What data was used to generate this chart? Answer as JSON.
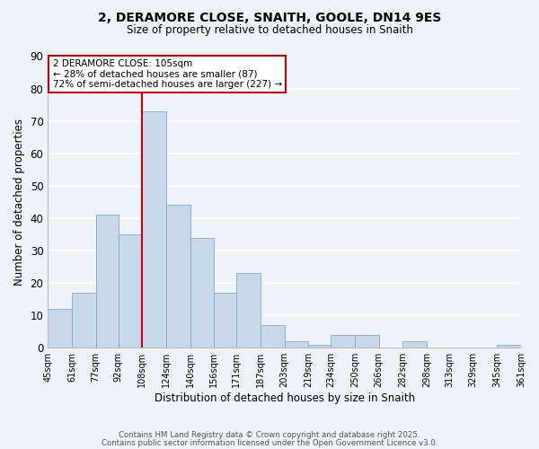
{
  "title": "2, DERAMORE CLOSE, SNAITH, GOOLE, DN14 9ES",
  "subtitle": "Size of property relative to detached houses in Snaith",
  "xlabel": "Distribution of detached houses by size in Snaith",
  "ylabel": "Number of detached properties",
  "bar_color": "#c8d8eb",
  "bar_edgecolor": "#7faac8",
  "background_color": "#eef2fa",
  "grid_color": "#ffffff",
  "vline_color": "#cc0000",
  "annotation_text": "2 DERAMORE CLOSE: 105sqm\n← 28% of detached houses are smaller (87)\n72% of semi-detached houses are larger (227) →",
  "annotation_box_edgecolor": "#cc0000",
  "bin_edges": [
    45,
    61,
    77,
    92,
    108,
    124,
    140,
    156,
    171,
    187,
    203,
    219,
    234,
    250,
    266,
    282,
    298,
    313,
    329,
    345,
    361
  ],
  "bin_labels": [
    "45sqm",
    "61sqm",
    "77sqm",
    "92sqm",
    "108sqm",
    "124sqm",
    "140sqm",
    "156sqm",
    "171sqm",
    "187sqm",
    "203sqm",
    "219sqm",
    "234sqm",
    "250sqm",
    "266sqm",
    "282sqm",
    "298sqm",
    "313sqm",
    "329sqm",
    "345sqm",
    "361sqm"
  ],
  "counts": [
    12,
    17,
    41,
    35,
    73,
    44,
    34,
    17,
    23,
    7,
    2,
    1,
    4,
    4,
    0,
    2,
    0,
    0,
    0,
    1
  ],
  "ylim": [
    0,
    90
  ],
  "yticks": [
    0,
    10,
    20,
    30,
    40,
    50,
    60,
    70,
    80,
    90
  ],
  "footer1": "Contains HM Land Registry data © Crown copyright and database right 2025.",
  "footer2": "Contains public sector information licensed under the Open Government Licence v3.0."
}
